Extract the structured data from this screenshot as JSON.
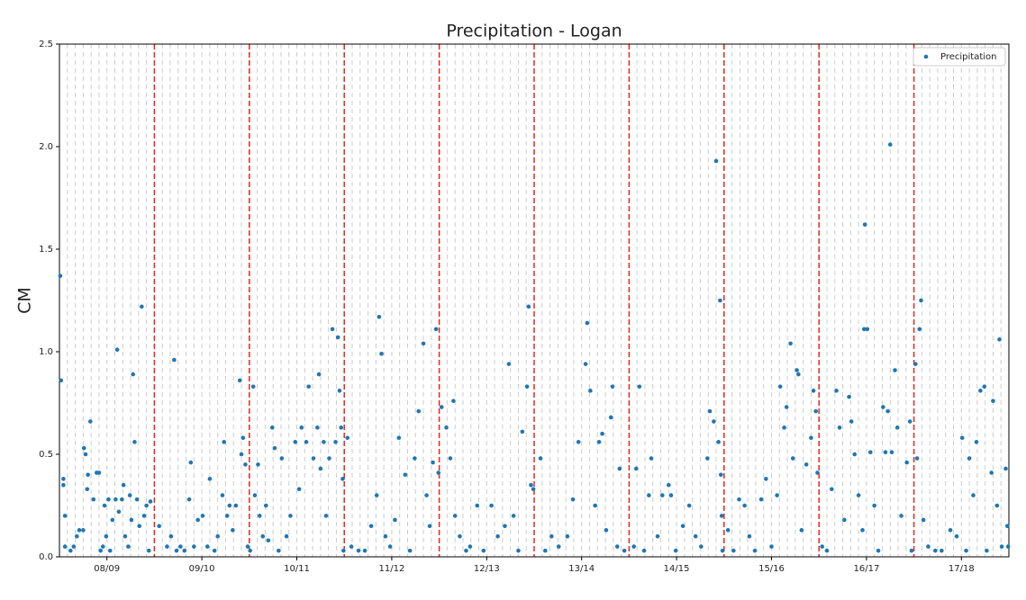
{
  "chart_data": {
    "type": "scatter",
    "title": "Precipitation - Logan",
    "y_label": "CM",
    "xlim": [
      0,
      120
    ],
    "ylim": [
      0,
      2.5
    ],
    "xticks": [
      {
        "value": 6,
        "label": "08/09"
      },
      {
        "value": 18,
        "label": "09/10"
      },
      {
        "value": 30,
        "label": "10/11"
      },
      {
        "value": 42,
        "label": "11/12"
      },
      {
        "value": 54,
        "label": "12/13"
      },
      {
        "value": 66,
        "label": "13/14"
      },
      {
        "value": 78,
        "label": "14/15"
      },
      {
        "value": 90,
        "label": "15/16"
      },
      {
        "value": 102,
        "label": "16/17"
      },
      {
        "value": 114,
        "label": "17/18"
      }
    ],
    "yticks": [
      {
        "value": 0,
        "label": "0.0"
      },
      {
        "value": 0.5,
        "label": "0.5"
      },
      {
        "value": 1,
        "label": "1.0"
      },
      {
        "value": 1.5,
        "label": "1.5"
      },
      {
        "value": 2,
        "label": "2.0"
      },
      {
        "value": 2.5,
        "label": "2.5"
      }
    ],
    "xgrid_minor": [
      1,
      2,
      3,
      4,
      5,
      6,
      7,
      8,
      9,
      10,
      11,
      12,
      13,
      14,
      15,
      16,
      17,
      18,
      19,
      20,
      21,
      22,
      23,
      24,
      25,
      26,
      27,
      28,
      29,
      30,
      31,
      32,
      33,
      34,
      35,
      36,
      37,
      38,
      39,
      40,
      41,
      42,
      43,
      44,
      45,
      46,
      47,
      48,
      49,
      50,
      51,
      52,
      53,
      54,
      55,
      56,
      57,
      58,
      59,
      60,
      61,
      62,
      63,
      64,
      65,
      66,
      67,
      68,
      69,
      70,
      71,
      72,
      73,
      74,
      75,
      76,
      77,
      78,
      79,
      80,
      81,
      82,
      83,
      84,
      85,
      86,
      87,
      88,
      89,
      90,
      91,
      92,
      93,
      94,
      95,
      96,
      97,
      98,
      99,
      100,
      101,
      102,
      103,
      104,
      105,
      106,
      107,
      108,
      109,
      110,
      111,
      112,
      113,
      114,
      115,
      116,
      117,
      118,
      119
    ],
    "season_boundaries": [
      12,
      24,
      36,
      48,
      60,
      72,
      84,
      96,
      108
    ],
    "boundary_color": "#e8261f",
    "legend": "upper right",
    "series": [
      {
        "name": "Precipitation",
        "color": "#1f77b4",
        "x": [
          0.1,
          0.2,
          0.5,
          0.5,
          0.7,
          0.7,
          1.4,
          1.8,
          2.2,
          2.5,
          3.0,
          3.1,
          3.3,
          3.5,
          3.6,
          3.9,
          4.3,
          4.7,
          5.0,
          5.2,
          5.5,
          5.7,
          5.9,
          6.2,
          6.4,
          6.7,
          7.1,
          7.3,
          7.5,
          7.9,
          8.1,
          8.3,
          8.7,
          8.9,
          9.1,
          9.3,
          9.5,
          9.8,
          10.1,
          10.4,
          10.7,
          11.0,
          11.5,
          11.3,
          12.6,
          13.6,
          14.1,
          14.5,
          14.8,
          15.3,
          15.8,
          16.4,
          16.6,
          17.0,
          17.5,
          18.1,
          18.7,
          19.0,
          19.6,
          20.0,
          20.6,
          20.8,
          21.2,
          21.5,
          21.9,
          22.3,
          22.8,
          23.0,
          23.2,
          23.5,
          23.8,
          24.1,
          24.5,
          24.7,
          25.1,
          25.3,
          25.7,
          26.1,
          26.4,
          26.9,
          27.2,
          27.7,
          28.1,
          28.7,
          29.2,
          29.8,
          30.3,
          30.6,
          31.2,
          31.5,
          32.1,
          32.6,
          32.8,
          33.0,
          33.4,
          33.7,
          34.1,
          34.5,
          34.9,
          35.2,
          35.4,
          35.6,
          35.8,
          35.9,
          36.4,
          36.9,
          37.8,
          38.6,
          39.4,
          40.1,
          40.4,
          40.7,
          41.2,
          41.8,
          42.4,
          42.9,
          43.7,
          44.3,
          44.9,
          45.4,
          46.0,
          46.4,
          46.8,
          47.2,
          47.6,
          47.9,
          48.3,
          48.9,
          49.4,
          49.8,
          50.0,
          50.6,
          51.4,
          51.9,
          52.8,
          53.6,
          54.6,
          55.4,
          56.3,
          56.8,
          57.4,
          58.0,
          58.5,
          59.1,
          59.3,
          59.6,
          59.9,
          60.8,
          61.4,
          62.2,
          63.1,
          64.2,
          64.9,
          65.6,
          66.5,
          66.7,
          67.1,
          67.7,
          68.2,
          68.6,
          69.1,
          69.7,
          69.9,
          70.5,
          70.8,
          71.4,
          72.6,
          72.9,
          73.3,
          73.9,
          74.5,
          74.8,
          75.6,
          76.2,
          77.0,
          77.3,
          77.9,
          78.8,
          79.6,
          80.4,
          81.1,
          81.9,
          82.2,
          82.7,
          83.0,
          83.3,
          83.5,
          83.6,
          83.7,
          83.8,
          84.5,
          85.2,
          85.9,
          86.6,
          87.2,
          87.9,
          88.7,
          89.3,
          90.0,
          90.7,
          91.1,
          91.6,
          91.9,
          92.4,
          92.7,
          93.2,
          93.4,
          93.8,
          94.4,
          95.0,
          95.3,
          95.6,
          95.8,
          96.4,
          97.0,
          97.6,
          98.2,
          98.6,
          99.2,
          99.8,
          100.1,
          100.5,
          101.0,
          101.5,
          101.7,
          101.8,
          102.1,
          102.5,
          103.0,
          103.5,
          104.1,
          104.4,
          104.7,
          105.0,
          105.2,
          105.6,
          105.9,
          106.4,
          107.1,
          107.5,
          107.7,
          108.2,
          108.4,
          108.7,
          108.9,
          109.2,
          109.8,
          110.7,
          111.5,
          112.6,
          113.4,
          114.1,
          114.6,
          115.0,
          115.5,
          115.9,
          116.4,
          116.9,
          117.2,
          117.8,
          118.0,
          118.5,
          118.8,
          119.1,
          119.6,
          119.8,
          119.9
        ],
        "values": [
          1.37,
          0.86,
          0.38,
          0.35,
          0.2,
          0.05,
          0.03,
          0.05,
          0.1,
          0.13,
          0.13,
          0.53,
          0.5,
          0.33,
          0.4,
          0.66,
          0.28,
          0.41,
          0.41,
          0.03,
          0.05,
          0.25,
          0.1,
          0.28,
          0.03,
          0.18,
          0.28,
          1.01,
          0.22,
          0.28,
          0.35,
          0.1,
          0.05,
          0.3,
          0.18,
          0.89,
          0.56,
          0.28,
          0.15,
          1.22,
          0.2,
          0.25,
          0.27,
          0.03,
          0.15,
          0.05,
          0.1,
          0.96,
          0.03,
          0.05,
          0.03,
          0.28,
          0.46,
          0.05,
          0.18,
          0.2,
          0.05,
          0.38,
          0.03,
          0.1,
          0.3,
          0.56,
          0.2,
          0.25,
          0.13,
          0.25,
          0.86,
          0.5,
          0.58,
          0.45,
          0.05,
          0.03,
          0.83,
          0.3,
          0.45,
          0.2,
          0.1,
          0.25,
          0.08,
          0.63,
          0.53,
          0.03,
          0.48,
          0.1,
          0.2,
          0.56,
          0.33,
          0.63,
          0.56,
          0.83,
          0.48,
          0.63,
          0.89,
          0.43,
          0.56,
          0.2,
          0.48,
          1.11,
          0.56,
          1.07,
          0.81,
          0.63,
          0.38,
          0.03,
          0.58,
          0.05,
          0.03,
          0.03,
          0.15,
          0.3,
          1.17,
          0.99,
          0.1,
          0.05,
          0.18,
          0.58,
          0.4,
          0.03,
          0.48,
          0.71,
          1.04,
          0.3,
          0.15,
          0.46,
          1.11,
          0.41,
          0.73,
          0.63,
          0.48,
          0.76,
          0.2,
          0.1,
          0.03,
          0.05,
          0.25,
          0.03,
          0.25,
          0.1,
          0.15,
          0.94,
          0.2,
          0.03,
          0.61,
          0.83,
          1.22,
          0.35,
          0.33,
          0.48,
          0.03,
          0.1,
          0.05,
          0.1,
          0.28,
          0.56,
          0.94,
          1.14,
          0.81,
          0.25,
          0.56,
          0.6,
          0.13,
          0.68,
          0.83,
          0.05,
          0.43,
          0.03,
          0.05,
          0.43,
          0.83,
          0.03,
          0.3,
          0.48,
          0.1,
          0.3,
          0.35,
          0.3,
          0.03,
          0.15,
          0.25,
          0.1,
          0.05,
          0.48,
          0.71,
          0.66,
          1.93,
          0.56,
          1.25,
          0.4,
          0.2,
          0.03,
          0.13,
          0.03,
          0.28,
          0.25,
          0.1,
          0.03,
          0.28,
          0.38,
          0.05,
          0.3,
          0.83,
          0.63,
          0.73,
          1.04,
          0.48,
          0.91,
          0.89,
          0.13,
          0.45,
          0.58,
          0.81,
          0.71,
          0.41,
          0.05,
          0.03,
          0.33,
          0.81,
          0.63,
          0.18,
          0.78,
          0.66,
          0.5,
          0.3,
          0.13,
          1.11,
          1.62,
          1.11,
          0.51,
          0.25,
          0.03,
          0.73,
          0.51,
          0.71,
          2.01,
          0.51,
          0.91,
          0.63,
          0.2,
          0.46,
          0.66,
          0.03,
          0.94,
          0.48,
          1.11,
          1.25,
          0.18,
          0.05,
          0.03,
          0.03,
          0.13,
          0.1,
          0.58,
          0.03,
          0.48,
          0.3,
          0.56,
          0.81,
          0.83,
          0.03,
          0.41,
          0.76,
          0.25,
          1.06,
          0.05,
          0.43,
          0.15,
          0.05
        ]
      }
    ]
  }
}
